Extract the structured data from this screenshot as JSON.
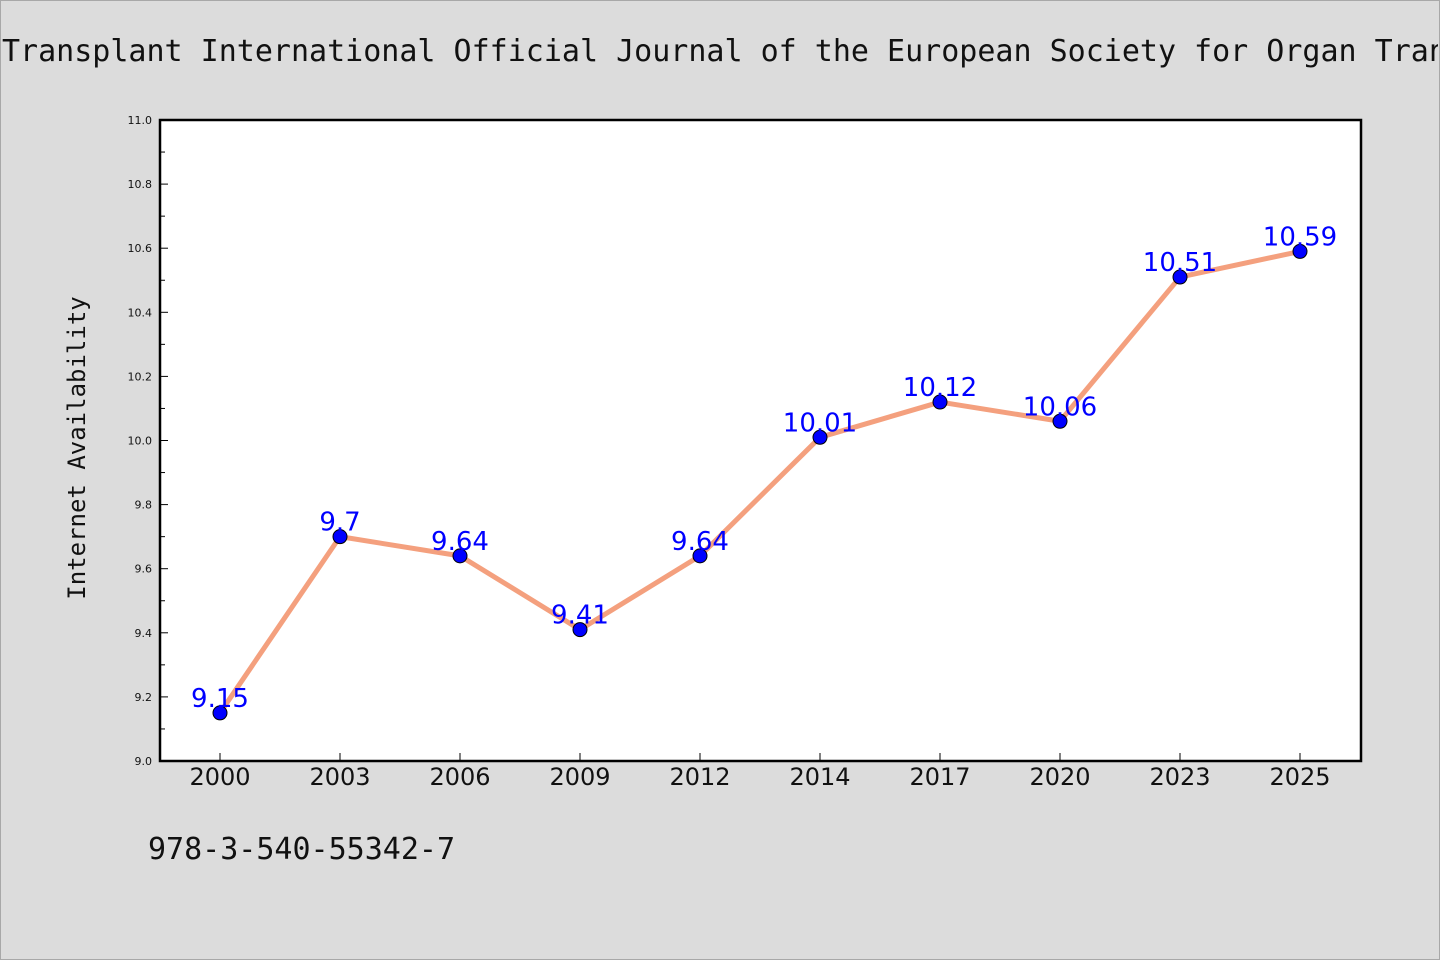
{
  "chart_data": {
    "type": "line",
    "title": "Transplant International Official Journal of the European Society for Organ Tran",
    "ylabel": "Internet Availability",
    "xlabel": "",
    "categories": [
      "2000",
      "2003",
      "2006",
      "2009",
      "2012",
      "2014",
      "2017",
      "2020",
      "2023",
      "2025"
    ],
    "series": [
      {
        "values": [
          9.15,
          9.7,
          9.64,
          9.41,
          9.64,
          10.01,
          10.12,
          10.06,
          10.51,
          10.59
        ],
        "data_labels": [
          "9.15",
          "9.7",
          "9.64",
          "9.41",
          "9.64",
          "10.01",
          "10.12",
          "10.06",
          "10.51",
          "10.59"
        ],
        "line_color": "#f4a07e",
        "marker_color": "#0000ff"
      }
    ],
    "ylim": [
      9.0,
      11.0
    ],
    "yticks": [
      9.0,
      9.2,
      9.4,
      9.6,
      9.8,
      10.0,
      10.2,
      10.4,
      10.6,
      10.8,
      11.0
    ],
    "ytick_labels": [
      "9.0",
      "9.2",
      "9.4",
      "9.6",
      "9.8",
      "10.0",
      "10.2",
      "10.4",
      "10.6",
      "10.8",
      "11.0"
    ],
    "grid": false,
    "legend": "none"
  },
  "footnote": "978-3-540-55342-7",
  "colors": {
    "background": "#dcdcdc",
    "plot_background": "#ffffff",
    "data_label": "#0000ff"
  }
}
